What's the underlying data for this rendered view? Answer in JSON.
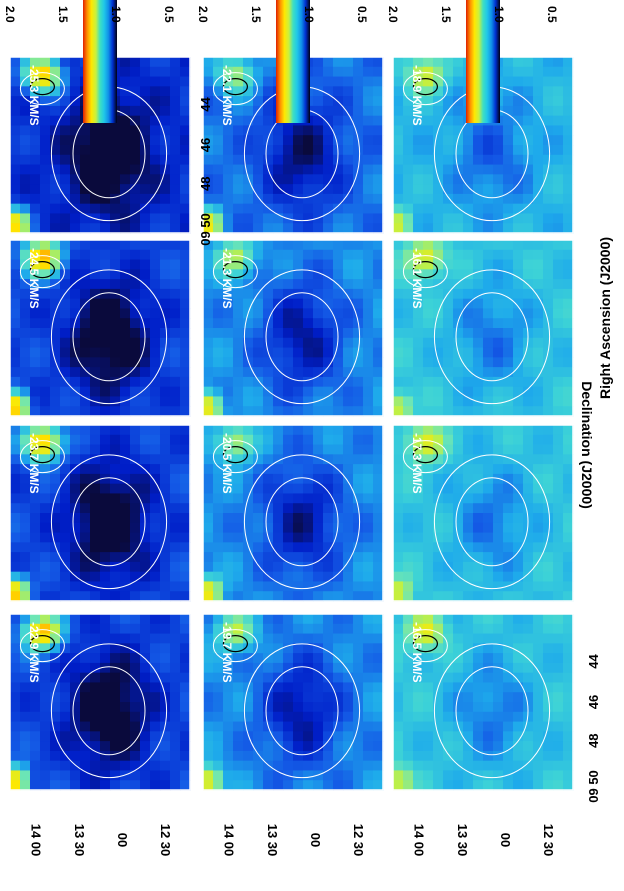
{
  "chart_data": {
    "type": "heatmap",
    "title": "",
    "xlabel": "Right Ascension (J2000)",
    "ylabel": "Declination (J2000)",
    "x_ticks": [
      "09 50",
      "48",
      "46",
      "44"
    ],
    "y_ticks": [
      "14 00",
      "13 30",
      "00",
      "12 30"
    ],
    "colorbar": {
      "range": [
        0.3,
        2.0
      ],
      "ticks": [
        "2.0",
        "1.5",
        "1.0",
        "0.5"
      ],
      "colormap": "rainbow"
    },
    "columns": [
      {
        "panels": [
          "-25.3 KM/S",
          "-24.5 KM/S",
          "-23.7 KM/S",
          "-22.9 KM/S"
        ]
      },
      {
        "panels": [
          "-22.1 KM/S",
          "-21.3 KM/S",
          "-20.5 KM/S",
          "-19.7 KM/S"
        ]
      },
      {
        "panels": [
          "-18.9 KM/S",
          "-16.1 KM/S",
          "-17.3 KM/S",
          "-16.5 KM/S"
        ]
      }
    ],
    "column_levels": [
      0.45,
      0.8,
      1.0
    ]
  }
}
